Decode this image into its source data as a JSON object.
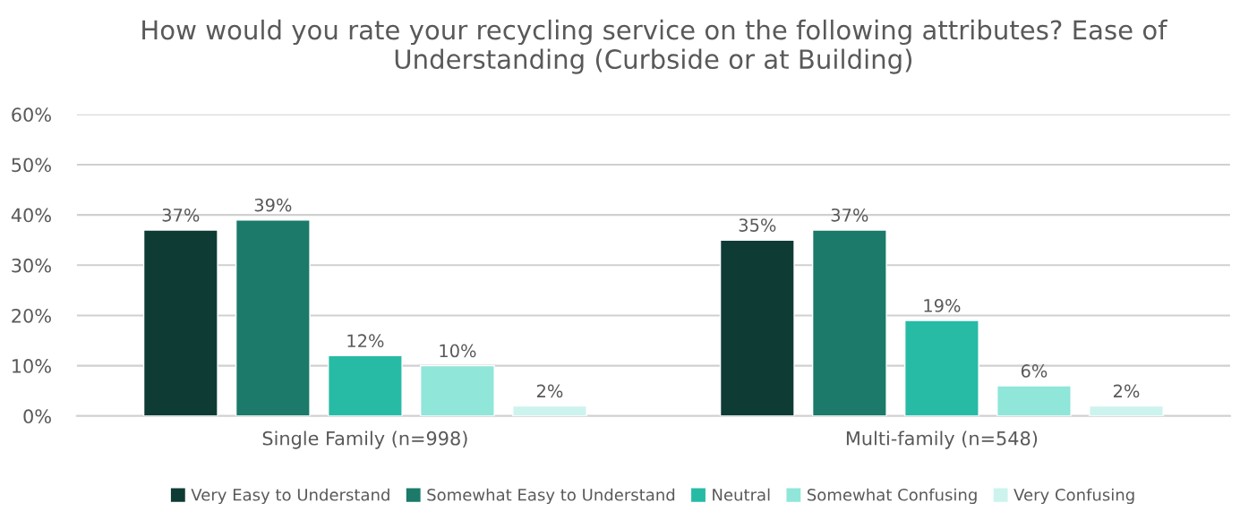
{
  "chart_data": {
    "type": "bar",
    "title": "How would you rate your recycling service on the following attributes? Ease of Understanding (Curbside or at Building)",
    "categories": [
      "Single Family (n=998)",
      "Multi-family (n=548)"
    ],
    "series": [
      {
        "name": "Very Easy to Understand",
        "color": "#0f3b35",
        "values": [
          37,
          35
        ],
        "value_labels": [
          "37%",
          "35%"
        ]
      },
      {
        "name": "Somewhat Easy to Understand",
        "color": "#1b7a6a",
        "values": [
          39,
          37
        ],
        "value_labels": [
          "39%",
          "37%"
        ]
      },
      {
        "name": "Neutral",
        "color": "#27bba6",
        "values": [
          12,
          19
        ],
        "value_labels": [
          "12%",
          "19%"
        ]
      },
      {
        "name": "Somewhat Confusing",
        "color": "#8fe6d9",
        "values": [
          10,
          6
        ],
        "value_labels": [
          "10%",
          "6%"
        ]
      },
      {
        "name": "Very Confusing",
        "color": "#cdf3ee",
        "values": [
          2,
          2
        ],
        "value_labels": [
          "2%",
          "2%"
        ]
      }
    ],
    "ylim": [
      0,
      60
    ],
    "yticks": [
      {
        "value": 0,
        "label": "0%"
      },
      {
        "value": 10,
        "label": "10%"
      },
      {
        "value": 20,
        "label": "20%"
      },
      {
        "value": 30,
        "label": "30%"
      },
      {
        "value": 40,
        "label": "40%"
      },
      {
        "value": 50,
        "label": "50%"
      },
      {
        "value": 60,
        "label": "60%"
      }
    ],
    "grid": "y",
    "legend": "bottom"
  }
}
